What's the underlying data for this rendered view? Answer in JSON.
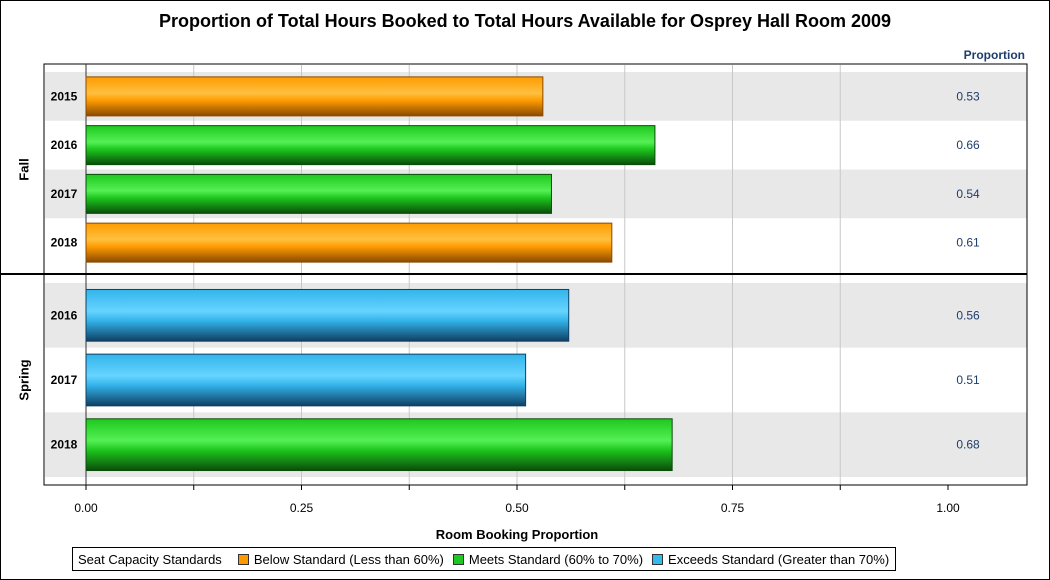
{
  "chart_data": {
    "type": "bar",
    "orientation": "horizontal",
    "title": "Proportion of Total Hours Booked to Total Hours Available for Osprey Hall Room 2009",
    "xlabel": "Room Booking Proportion",
    "value_column_header": "Proportion",
    "xlim": [
      0,
      1
    ],
    "x_ticks": [
      "0.00",
      "0.25",
      "0.50",
      "0.75",
      "1.00"
    ],
    "grid": true,
    "groups": [
      {
        "name": "Fall",
        "rows": [
          {
            "category": "2015",
            "value": 0.53,
            "label": "0.53",
            "standard": "below"
          },
          {
            "category": "2016",
            "value": 0.66,
            "label": "0.66",
            "standard": "meets"
          },
          {
            "category": "2017",
            "value": 0.54,
            "label": "0.54",
            "standard": "meets"
          },
          {
            "category": "2018",
            "value": 0.61,
            "label": "0.61",
            "standard": "below"
          }
        ]
      },
      {
        "name": "Spring",
        "rows": [
          {
            "category": "2016",
            "value": 0.56,
            "label": "0.56",
            "standard": "exceeds"
          },
          {
            "category": "2017",
            "value": 0.51,
            "label": "0.51",
            "standard": "exceeds"
          },
          {
            "category": "2018",
            "value": 0.68,
            "label": "0.68",
            "standard": "meets"
          }
        ]
      }
    ],
    "legend": {
      "title": "Seat Capacity Standards",
      "placement": "bottom",
      "items": [
        {
          "key": "below",
          "label": "Below Standard (Less than 60%)",
          "color": "#ff9900"
        },
        {
          "key": "meets",
          "label": "Meets Standard (60% to 70%)",
          "color": "#1ec81e"
        },
        {
          "key": "exceeds",
          "label": "Exceeds Standard (Greater than 70%)",
          "color": "#33bbf0"
        }
      ]
    },
    "colors": {
      "below": {
        "light": "#ffc040",
        "mid": "#ff9c00",
        "dark": "#8a4a00"
      },
      "meets": {
        "light": "#55f055",
        "mid": "#1ec81e",
        "dark": "#0a4d0a"
      },
      "exceeds": {
        "light": "#66d4ff",
        "mid": "#33b4ea",
        "dark": "#0f3f63"
      },
      "row_band": "#e8e8e8",
      "grid": "#c8c8c8",
      "value_text": "#1f3d6b"
    }
  }
}
